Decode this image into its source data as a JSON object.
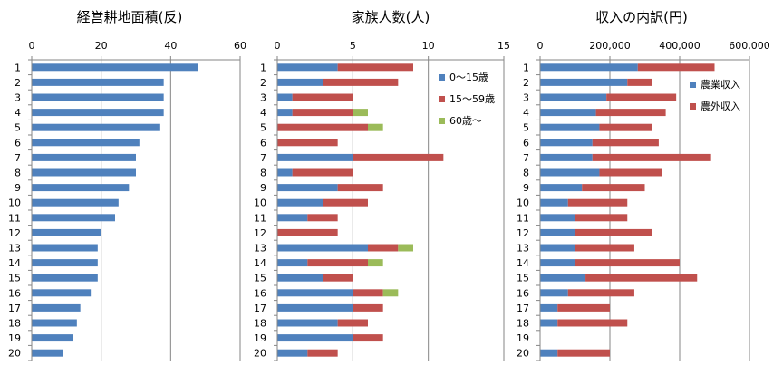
{
  "chart_data": [
    {
      "type": "bar",
      "orientation": "horizontal",
      "title": "経営耕地面積(反)",
      "categories": [
        "1",
        "2",
        "3",
        "4",
        "5",
        "6",
        "7",
        "8",
        "9",
        "10",
        "11",
        "12",
        "13",
        "14",
        "15",
        "16",
        "17",
        "18",
        "19",
        "20"
      ],
      "series": [
        {
          "values": [
            48,
            38,
            38,
            38,
            37,
            31,
            30,
            30,
            28,
            25,
            24,
            20,
            19,
            19,
            19,
            17,
            14,
            13,
            12,
            9
          ]
        }
      ],
      "xlim": [
        0,
        60
      ],
      "xticks": [
        "0",
        "20",
        "40",
        "60"
      ],
      "xtick_values": [
        0,
        20,
        40,
        60
      ],
      "grid": true,
      "colors": [
        "#4f81bd"
      ]
    },
    {
      "type": "bar",
      "orientation": "horizontal",
      "stacked": true,
      "title": "家族人数(人)",
      "categories": [
        "1",
        "2",
        "3",
        "4",
        "5",
        "6",
        "7",
        "8",
        "9",
        "10",
        "11",
        "12",
        "13",
        "14",
        "15",
        "16",
        "17",
        "18",
        "19",
        "20"
      ],
      "series": [
        {
          "name": "0～15歳",
          "values": [
            4,
            3,
            1,
            1,
            0,
            0,
            5,
            1,
            4,
            3,
            2,
            0,
            6,
            2,
            3,
            5,
            5,
            4,
            5,
            2
          ]
        },
        {
          "name": "15～59歳",
          "values": [
            5,
            5,
            4,
            4,
            6,
            4,
            6,
            4,
            3,
            3,
            2,
            4,
            2,
            4,
            2,
            2,
            2,
            2,
            2,
            2
          ]
        },
        {
          "name": "60歳～",
          "values": [
            0,
            0,
            0,
            1,
            1,
            0,
            0,
            0,
            0,
            0,
            0,
            0,
            1,
            1,
            0,
            1,
            0,
            0,
            0,
            0
          ]
        }
      ],
      "xlim": [
        0,
        15
      ],
      "xticks": [
        "0",
        "5",
        "10",
        "15"
      ],
      "xtick_values": [
        0,
        5,
        10,
        15
      ],
      "grid": true,
      "legend": "top-right",
      "colors": [
        "#4f81bd",
        "#c0504d",
        "#9bbb59"
      ]
    },
    {
      "type": "bar",
      "orientation": "horizontal",
      "stacked": true,
      "title": "収入の内訳(円)",
      "categories": [
        "1",
        "2",
        "3",
        "4",
        "5",
        "6",
        "7",
        "8",
        "9",
        "10",
        "11",
        "12",
        "13",
        "14",
        "15",
        "16",
        "17",
        "18",
        "19",
        "20"
      ],
      "series": [
        {
          "name": "農業収入",
          "values": [
            280000,
            250000,
            190000,
            160000,
            170000,
            150000,
            150000,
            170000,
            120000,
            80000,
            100000,
            100000,
            100000,
            100000,
            130000,
            80000,
            50000,
            50000,
            0,
            50000
          ]
        },
        {
          "name": "農外収入",
          "values": [
            220000,
            70000,
            200000,
            200000,
            150000,
            190000,
            340000,
            180000,
            180000,
            170000,
            150000,
            220000,
            170000,
            300000,
            320000,
            190000,
            150000,
            200000,
            0,
            150000
          ]
        }
      ],
      "xlim": [
        0,
        600000
      ],
      "xticks": [
        "0",
        "200,000",
        "400,000",
        "600,000"
      ],
      "xtick_values": [
        0,
        200000,
        400000,
        600000
      ],
      "grid": true,
      "legend": "top-right",
      "colors": [
        "#4f81bd",
        "#c0504d"
      ]
    }
  ]
}
